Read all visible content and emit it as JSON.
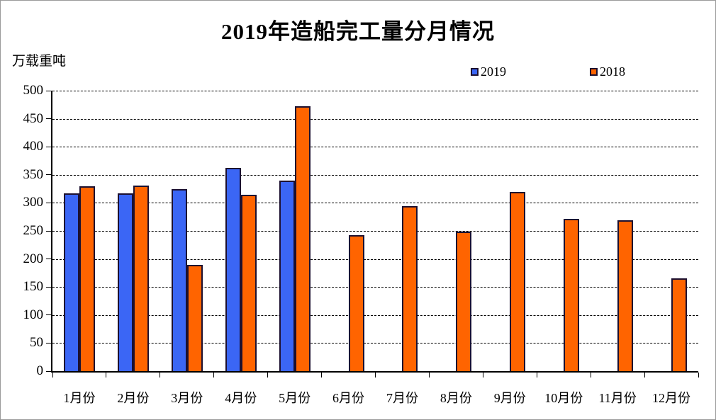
{
  "title": "2019年造船完工量分月情况",
  "y_axis_unit": "万载重吨",
  "legend": [
    {
      "label": "2019",
      "color": "#3B66F5"
    },
    {
      "label": "2018",
      "color": "#FF6400"
    }
  ],
  "colors": {
    "bar_border": "#1C1030",
    "axis": "#000000",
    "gridline": "#000000",
    "frame_border": "#9a9a9a",
    "background": "#ffffff"
  },
  "chart_data": {
    "type": "bar",
    "title": "2019年造船完工量分月情况",
    "ylabel": "万载重吨",
    "categories": [
      "1月份",
      "2月份",
      "3月份",
      "4月份",
      "5月份",
      "6月份",
      "7月份",
      "8月份",
      "9月份",
      "10月份",
      "11月份",
      "12月份"
    ],
    "series": [
      {
        "name": "2019",
        "color": "#3B66F5",
        "values": [
          317,
          317,
          325,
          362,
          340,
          null,
          null,
          null,
          null,
          null,
          null,
          null
        ]
      },
      {
        "name": "2018",
        "color": "#FF6400",
        "values": [
          330,
          331,
          190,
          315,
          472,
          242,
          294,
          249,
          320,
          271,
          269,
          165
        ]
      }
    ],
    "ylim": [
      0,
      500
    ],
    "ytick_step": 50,
    "grid": "dashed-horizontal",
    "legend_position": "top-right"
  }
}
